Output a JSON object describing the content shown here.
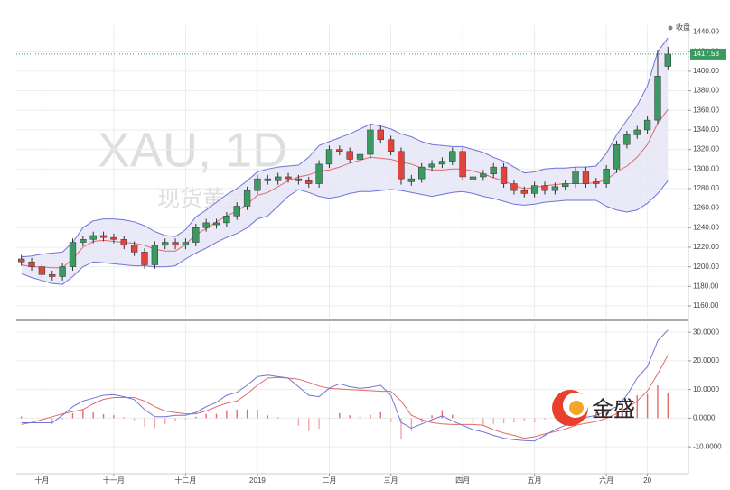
{
  "logo": "金盛",
  "chart_data": [
    {
      "type": "candlestick",
      "watermark": "XAU, 1D",
      "watermark_subtitle": "现货黄金",
      "legend": "收盘",
      "up_color": "#3a9a62",
      "down_color": "#e0443c",
      "band_color": "#6f74d8",
      "middle_color": "#e06a6a",
      "band_fill": "#e4e4f5",
      "last_color": "#3a9a62",
      "ylim": [
        1148,
        1447
      ],
      "yticks": [
        {
          "value": 1160,
          "label": "1160.00"
        },
        {
          "value": 1180,
          "label": "1180.00"
        },
        {
          "value": 1200,
          "label": "1200.00"
        },
        {
          "value": 1220,
          "label": "1220.00"
        },
        {
          "value": 1240,
          "label": "1240.00"
        },
        {
          "value": 1260,
          "label": "1260.00"
        },
        {
          "value": 1280,
          "label": "1280.00"
        },
        {
          "value": 1300,
          "label": "1300.00"
        },
        {
          "value": 1320,
          "label": "1320.00"
        },
        {
          "value": 1340,
          "label": "1340.00"
        },
        {
          "value": 1360,
          "label": "1360.00"
        },
        {
          "value": 1380,
          "label": "1380.00"
        },
        {
          "value": 1400,
          "label": "1400.00"
        },
        {
          "value": 1420,
          "label": "1420.00"
        },
        {
          "value": 1440,
          "label": "1440.00"
        }
      ],
      "grid": true,
      "open": [
        1208,
        1205,
        1200,
        1192,
        1190,
        1200,
        1225,
        1228,
        1232,
        1230,
        1228,
        1222,
        1215,
        1202,
        1222,
        1225,
        1222,
        1225,
        1240,
        1243,
        1245,
        1252,
        1262,
        1278,
        1290,
        1288,
        1292,
        1290,
        1288,
        1285,
        1305,
        1320,
        1318,
        1310,
        1315,
        1340,
        1330,
        1318,
        1287,
        1290,
        1302,
        1305,
        1308,
        1318,
        1289,
        1292,
        1295,
        1302,
        1285,
        1278,
        1275,
        1283,
        1278,
        1282,
        1285,
        1298,
        1287,
        1285,
        1300,
        1325,
        1335,
        1340,
        1350,
        1405
      ],
      "high": [
        1212,
        1209,
        1204,
        1196,
        1204,
        1229,
        1232,
        1236,
        1236,
        1234,
        1232,
        1226,
        1219,
        1226,
        1229,
        1229,
        1229,
        1244,
        1249,
        1249,
        1256,
        1266,
        1282,
        1294,
        1294,
        1296,
        1296,
        1294,
        1292,
        1309,
        1324,
        1324,
        1322,
        1319,
        1346,
        1344,
        1334,
        1322,
        1294,
        1306,
        1309,
        1312,
        1322,
        1322,
        1296,
        1299,
        1306,
        1306,
        1289,
        1282,
        1287,
        1287,
        1286,
        1289,
        1302,
        1302,
        1291,
        1304,
        1329,
        1339,
        1344,
        1354,
        1422,
        1425
      ],
      "low": [
        1201,
        1196,
        1188,
        1186,
        1186,
        1196,
        1221,
        1224,
        1226,
        1224,
        1218,
        1211,
        1198,
        1198,
        1218,
        1218,
        1218,
        1221,
        1236,
        1239,
        1241,
        1248,
        1258,
        1274,
        1284,
        1284,
        1286,
        1284,
        1281,
        1281,
        1301,
        1314,
        1306,
        1306,
        1311,
        1326,
        1314,
        1284,
        1283,
        1286,
        1298,
        1301,
        1304,
        1288,
        1285,
        1288,
        1291,
        1281,
        1274,
        1271,
        1271,
        1274,
        1274,
        1278,
        1281,
        1281,
        1281,
        1281,
        1296,
        1321,
        1331,
        1336,
        1346,
        1401
      ],
      "close": [
        1205,
        1200,
        1192,
        1190,
        1200,
        1225,
        1228,
        1232,
        1230,
        1228,
        1222,
        1215,
        1202,
        1222,
        1225,
        1222,
        1225,
        1240,
        1245,
        1245,
        1252,
        1262,
        1278,
        1290,
        1288,
        1292,
        1290,
        1288,
        1285,
        1305,
        1320,
        1318,
        1310,
        1315,
        1340,
        1330,
        1318,
        1290,
        1290,
        1302,
        1305,
        1308,
        1318,
        1292,
        1292,
        1295,
        1302,
        1285,
        1278,
        1275,
        1283,
        1278,
        1282,
        1285,
        1298,
        1285,
        1285,
        1300,
        1325,
        1335,
        1340,
        1350,
        1395,
        1417.53
      ],
      "bb_upper": [
        1210,
        1211,
        1213,
        1214,
        1215,
        1225,
        1240,
        1247,
        1249,
        1249,
        1248,
        1246,
        1242,
        1236,
        1232,
        1231,
        1238,
        1251,
        1258,
        1266,
        1274,
        1280,
        1288,
        1297,
        1300,
        1302,
        1303,
        1304,
        1312,
        1324,
        1328,
        1332,
        1336,
        1341,
        1346,
        1344,
        1341,
        1336,
        1333,
        1328,
        1325,
        1324,
        1323,
        1323,
        1320,
        1317,
        1312,
        1308,
        1302,
        1296,
        1297,
        1300,
        1301,
        1301,
        1302,
        1302,
        1303,
        1316,
        1335,
        1350,
        1365,
        1385,
        1420,
        1434
      ],
      "bb_middle": [
        1202,
        1200,
        1200,
        1199,
        1199,
        1208,
        1220,
        1226,
        1227,
        1226,
        1225,
        1224,
        1222,
        1218,
        1216,
        1216,
        1223,
        1233,
        1239,
        1246,
        1252,
        1257,
        1264,
        1273,
        1276,
        1282,
        1288,
        1292,
        1294,
        1298,
        1299,
        1302,
        1306,
        1309,
        1312,
        1311,
        1310,
        1307,
        1305,
        1301,
        1299,
        1299,
        1300,
        1300,
        1298,
        1295,
        1291,
        1288,
        1283,
        1280,
        1281,
        1283,
        1284,
        1285,
        1285,
        1285,
        1286,
        1289,
        1297,
        1303,
        1312,
        1325,
        1347,
        1361
      ],
      "bb_lower": [
        1193,
        1189,
        1186,
        1183,
        1182,
        1190,
        1200,
        1205,
        1204,
        1203,
        1202,
        1201,
        1201,
        1200,
        1200,
        1201,
        1208,
        1214,
        1219,
        1225,
        1230,
        1234,
        1240,
        1249,
        1252,
        1262,
        1272,
        1279,
        1276,
        1272,
        1270,
        1272,
        1275,
        1277,
        1277,
        1278,
        1279,
        1278,
        1276,
        1274,
        1272,
        1274,
        1276,
        1277,
        1275,
        1272,
        1270,
        1267,
        1264,
        1263,
        1264,
        1266,
        1267,
        1268,
        1268,
        1268,
        1268,
        1262,
        1258,
        1256,
        1258,
        1265,
        1275,
        1288
      ]
    },
    {
      "type": "macd",
      "dif_color": "#6f74d8",
      "dea_color": "#e06a6a",
      "hist_up_color": "#e66a6a",
      "hist_down_color": "#f0a8a8",
      "ylim": [
        -19.4,
        33.2
      ],
      "yticks": [
        {
          "value": -10,
          "label": "-10.0000"
        },
        {
          "value": 0,
          "label": "0.0000"
        },
        {
          "value": 10,
          "label": "10.0000"
        },
        {
          "value": 20,
          "label": "20.0000"
        },
        {
          "value": 30,
          "label": "30.0000"
        }
      ],
      "grid": true,
      "categories": [
        null,
        null,
        "十月",
        null,
        null,
        null,
        null,
        null,
        null,
        "十一月",
        null,
        null,
        null,
        null,
        null,
        null,
        "十二月",
        null,
        null,
        null,
        null,
        null,
        null,
        "2019",
        null,
        null,
        null,
        null,
        null,
        null,
        "二月",
        null,
        null,
        null,
        null,
        null,
        "三月",
        null,
        null,
        null,
        null,
        null,
        null,
        "四月",
        null,
        null,
        null,
        null,
        null,
        null,
        "五月",
        null,
        null,
        null,
        null,
        null,
        null,
        "六月",
        null,
        null,
        null,
        "20",
        null,
        null
      ],
      "dif": [
        -1.6,
        -1.6,
        -1.6,
        -1.6,
        1,
        4,
        6,
        7,
        8,
        8.2,
        7.5,
        6.5,
        3,
        0.5,
        0.5,
        1,
        1,
        2,
        4,
        5.5,
        8,
        9,
        11.5,
        14.5,
        15,
        14.5,
        14,
        11,
        8,
        7.5,
        10.5,
        12,
        11,
        10.4,
        10.8,
        11.5,
        8,
        -1.5,
        -3.5,
        -2,
        -0.5,
        0.8,
        -1,
        -2.5,
        -4,
        -4.8,
        -6,
        -7,
        -7.5,
        -7.8,
        -8,
        -6,
        -4,
        -2.5,
        -1,
        0.3,
        1,
        2.5,
        4,
        8,
        14,
        18,
        27,
        30.8
      ],
      "dea": [
        -2.2,
        -1.5,
        -0.5,
        0.5,
        1.5,
        2.3,
        3,
        5,
        6.6,
        7.2,
        7.2,
        7.2,
        6,
        4,
        2.5,
        2,
        1.5,
        1.5,
        2.5,
        4,
        5.2,
        6,
        8.5,
        11.5,
        14,
        14.2,
        14,
        13.6,
        12.5,
        11.2,
        10.4,
        10.2,
        10,
        9.8,
        9.6,
        9.4,
        9.4,
        6,
        1,
        -0.5,
        -1.5,
        -2,
        -2.2,
        -2.2,
        -2.2,
        -2.5,
        -4,
        -5.2,
        -6,
        -7,
        -6.5,
        -5.5,
        -4.7,
        -3.8,
        -2.5,
        -1.8,
        -1.2,
        0,
        1.5,
        3.5,
        6,
        9.5,
        15.5,
        22
      ],
      "hist": [
        0.6,
        -0.1,
        -1.1,
        -2.1,
        -0.5,
        1.7,
        3,
        2,
        1.4,
        1,
        0.3,
        -0.7,
        -3,
        -3.5,
        -2,
        -1,
        -0.5,
        0.5,
        1.5,
        1.5,
        2.8,
        3,
        3,
        3,
        1,
        0.3,
        0,
        -2.6,
        -4.5,
        -3.7,
        0.1,
        1.8,
        1,
        0.6,
        1.2,
        2.1,
        -1.4,
        -7.5,
        -4.5,
        -1.5,
        1,
        2.8,
        1.2,
        -0.3,
        -1.8,
        -2.3,
        -2,
        -1.8,
        -1.5,
        -0.8,
        -1.5,
        -0.5,
        0.7,
        1.3,
        1.5,
        2.1,
        2.2,
        2.5,
        2.5,
        4.5,
        8,
        8.5,
        11.5,
        8.8
      ]
    }
  ]
}
